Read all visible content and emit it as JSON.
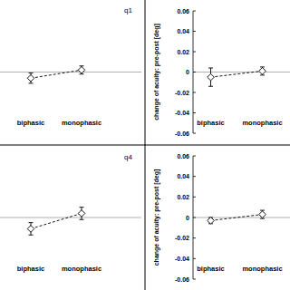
{
  "chart_data": [
    {
      "type": "line",
      "title": "q1",
      "categories": [
        "biphasic",
        "monophasic"
      ],
      "values": [
        -0.006,
        0.002
      ],
      "errors": [
        0.005,
        0.004
      ],
      "ylim": [
        -0.06,
        0.06
      ],
      "reference_line": 0,
      "tick_labels": "x",
      "marker": "diamond",
      "line_style": "dashed",
      "color": "#000000"
    },
    {
      "type": "line",
      "y_label": "change of acuity: pre-post [deg]",
      "categories": [
        "biphasic",
        "monophasic"
      ],
      "values": [
        -0.005,
        0.001
      ],
      "errors": [
        0.009,
        0.004
      ],
      "ylim": [
        -0.06,
        0.06
      ],
      "yticks": [
        0.06,
        0.04,
        0.02,
        0,
        -0.02,
        -0.04,
        -0.06
      ],
      "reference_line": 0,
      "marker": "diamond",
      "line_style": "dashed",
      "color": "#000000"
    },
    {
      "type": "line",
      "title": "q4",
      "categories": [
        "biphasic",
        "monophasic"
      ],
      "values": [
        -0.011,
        0.004
      ],
      "errors": [
        0.006,
        0.006
      ],
      "ylim": [
        -0.06,
        0.06
      ],
      "reference_line": 0,
      "tick_labels": "x",
      "marker": "diamond",
      "line_style": "dashed",
      "color": "#000000"
    },
    {
      "type": "line",
      "y_label": "change of acuity: pre-post [deg]",
      "categories": [
        "biphasic",
        "monophasic"
      ],
      "values": [
        -0.003,
        0.003
      ],
      "errors": [
        0.003,
        0.004
      ],
      "ylim": [
        -0.06,
        0.06
      ],
      "yticks": [
        0.06,
        0.04,
        0.02,
        0,
        -0.02,
        -0.04,
        -0.06
      ],
      "reference_line": 0,
      "marker": "diamond",
      "line_style": "dashed",
      "color": "#000000"
    }
  ]
}
